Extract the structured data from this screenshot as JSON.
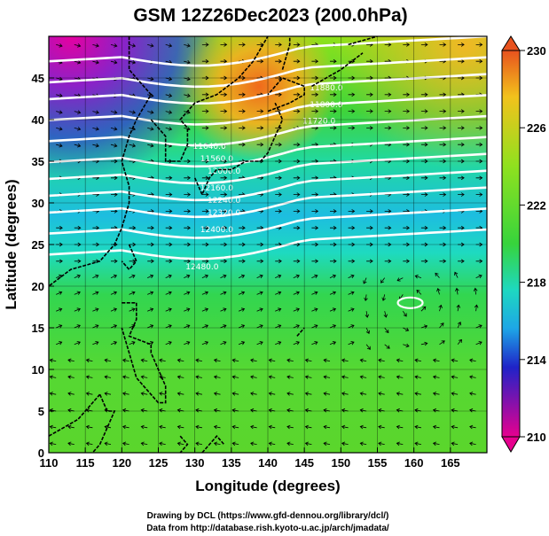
{
  "title": "GSM 12Z26Dec2023 (200.0hPa)",
  "xlabel": "Longitude (degrees)",
  "ylabel": "Latitude  (degrees)",
  "credits": {
    "line1": "Drawing by DCL (https://www.gfd-dennou.org/library/dcl/)",
    "line2": "Data from http://database.rish.kyoto-u.ac.jp/arch/jmadata/"
  },
  "colorbar": {
    "ticks": [
      "230",
      "226",
      "222",
      "218",
      "214",
      "210"
    ],
    "range": [
      210,
      230
    ],
    "colors": [
      "#e7008f",
      "#1f23c8",
      "#1ea6e6",
      "#1ed8c0",
      "#37d43c",
      "#8fe11f",
      "#f2c21c",
      "#e8521e"
    ]
  },
  "map": {
    "x_ticks": [
      "110",
      "115",
      "120",
      "125",
      "130",
      "135",
      "140",
      "145",
      "150",
      "155",
      "160",
      "165"
    ],
    "y_ticks": [
      "45",
      "40",
      "35",
      "30",
      "25",
      "20",
      "15",
      "10",
      "5",
      "0"
    ],
    "lon_range": [
      110,
      170
    ],
    "lat_range": [
      0,
      50
    ],
    "contour_labels": [
      "11880.0",
      "11800.0",
      "11720.0",
      "11640.0",
      "11560.0",
      "12000.0",
      "12160.0",
      "12240.0",
      "12320.0",
      "12400.0",
      "12480.0"
    ]
  }
}
